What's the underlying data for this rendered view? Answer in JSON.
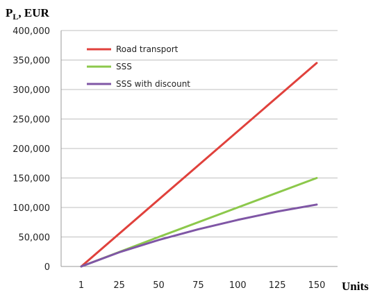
{
  "chart_data": {
    "type": "line",
    "ylabel_main": "P",
    "ylabel_sub": "L",
    "ylabel_unit": ", EUR",
    "xlabel": "Units",
    "x": [
      1,
      150
    ],
    "x_ticks": [
      "1",
      "25",
      "50",
      "75",
      "100",
      "125",
      "150"
    ],
    "y_ticks": [
      "0",
      "50,000",
      "100,000",
      "150,000",
      "200,000",
      "250,000",
      "300,000",
      "350,000",
      "400,000"
    ],
    "ylim": [
      0,
      400000
    ],
    "grid": "horizontal",
    "legend_position": "top-left",
    "series": [
      {
        "name": "Road transport",
        "color": "#e0413c",
        "x": [
          1,
          150
        ],
        "values": [
          0,
          345000
        ]
      },
      {
        "name": "SSS",
        "color": "#8cc84b",
        "x": [
          1,
          50,
          100,
          150
        ],
        "values": [
          0,
          50000,
          100000,
          150000
        ]
      },
      {
        "name": "SSS with discount",
        "color": "#7f56a5",
        "x": [
          1,
          25,
          50,
          75,
          100,
          125,
          150
        ],
        "values": [
          0,
          24000,
          45000,
          63000,
          79000,
          93000,
          105000
        ]
      }
    ]
  }
}
